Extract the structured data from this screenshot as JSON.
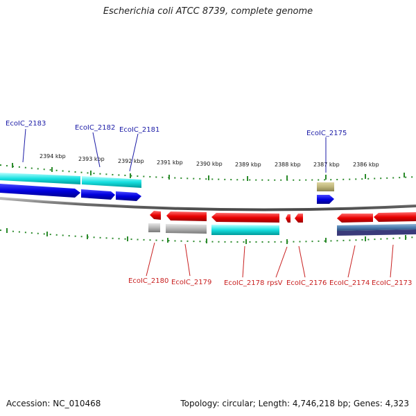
{
  "title": "Escherichia coli ATCC 8739, complete genome",
  "footer": {
    "accession": "Accession: NC_010468",
    "summary": "Topology: circular; Length: 4,746,218 bp; Genes: 4,323"
  },
  "kbp_labels": [
    "2394 kbp",
    "2393 kbp",
    "2392 kbp",
    "2391 kbp",
    "2390 kbp",
    "2389 kbp",
    "2388 kbp",
    "2387 kbp",
    "2386 kbp"
  ],
  "genes_top": [
    {
      "label": "EcoIC_2183"
    },
    {
      "label": "EcoIC_2182"
    },
    {
      "label": "EcoIC_2181"
    },
    {
      "label": "EcoIC_2175"
    }
  ],
  "genes_bottom": [
    {
      "label": "EcoIC_2180"
    },
    {
      "label": "EcoIC_2179"
    },
    {
      "label": "EcoIC_2178"
    },
    {
      "label": "rpsV"
    },
    {
      "label": "EcoIC_2176"
    },
    {
      "label": "EcoIC_2174"
    },
    {
      "label": "EcoIC_2173"
    }
  ],
  "colors": {
    "top_label": "#1a1aa6",
    "bottom_label": "#c81e1e",
    "forward_gene": "#0a0ae6",
    "reverse_gene": "#e60000",
    "cds_cyan": "#00dede",
    "backbone": "#808080",
    "tick": "#2a8a2a"
  }
}
